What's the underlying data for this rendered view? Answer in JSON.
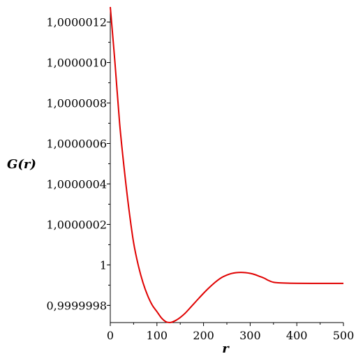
{
  "chart_data": {
    "type": "line",
    "title": "",
    "xlabel": "r",
    "ylabel": "G(r)",
    "xlim": [
      0,
      500
    ],
    "ylim": [
      0.999999715,
      1.0000012745
    ],
    "x_ticks": [
      {
        "value": 0,
        "label": "0"
      },
      {
        "value": 100,
        "label": "100"
      },
      {
        "value": 200,
        "label": "200"
      },
      {
        "value": 300,
        "label": "300"
      },
      {
        "value": 400,
        "label": "400"
      },
      {
        "value": 500,
        "label": "500"
      }
    ],
    "y_ticks": [
      {
        "value": 0.9999998,
        "label": "0,9999998"
      },
      {
        "value": 1.0,
        "label": "1"
      },
      {
        "value": 1.0000002,
        "label": "1,0000002"
      },
      {
        "value": 1.0000004,
        "label": "1,0000004"
      },
      {
        "value": 1.0000006,
        "label": "1,0000006"
      },
      {
        "value": 1.0000008,
        "label": "1,0000008"
      },
      {
        "value": 1.000001,
        "label": "1,0000010"
      },
      {
        "value": 1.0000012,
        "label": "1,0000012"
      }
    ],
    "grid": false,
    "colors": {
      "line": "#e00000",
      "axis": "#000000"
    },
    "series": [
      {
        "x": [
          0,
          10,
          20,
          30,
          40,
          50,
          60,
          70,
          80,
          90,
          100,
          110,
          120,
          130,
          140,
          150,
          160,
          170,
          180,
          190,
          200,
          210,
          220,
          230,
          240,
          250,
          260,
          270,
          280,
          290,
          300,
          310,
          320,
          330,
          340,
          350,
          360,
          380,
          400,
          450,
          500
        ],
        "y": [
          1.0000012745,
          1.000001,
          1.0000007,
          1.0000004716,
          1.0000002744,
          1.0000001099,
          0.9999999981,
          0.9999999131,
          0.9999998491,
          0.9999998011,
          0.9999997692,
          0.9999997372,
          0.9999997184,
          0.9999997159,
          0.9999997251,
          0.9999997402,
          0.99999976,
          0.9999997848,
          0.99999981,
          0.9999998353,
          0.9999998599,
          0.9999998832,
          0.9999999045,
          0.9999999234,
          0.9999999391,
          0.99999995,
          0.9999999575,
          0.9999999617,
          0.999999963,
          0.9999999617,
          0.9999999582,
          0.9999999522,
          0.9999999434,
          0.9999999345,
          0.9999999224,
          0.9999999142,
          0.9999999117,
          0.9999999098,
          0.999999909,
          0.9999999086,
          0.9999999086
        ]
      }
    ]
  }
}
